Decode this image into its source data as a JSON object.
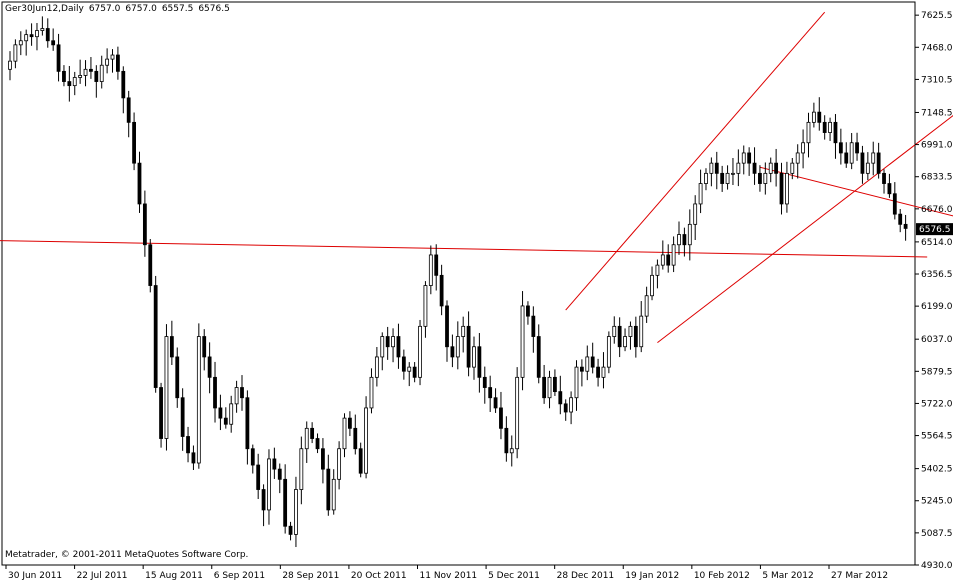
{
  "header": {
    "symbol": "Ger30Jun12,Daily",
    "open": "6757.0",
    "high": "6757.0",
    "low": "6557.5",
    "close": "6576.5"
  },
  "footer": {
    "copyright": "Metatrader, © 2001-2011 MetaQuotes Software Corp."
  },
  "colors": {
    "line": "#dd0000",
    "candle_up": "#000000",
    "candle_down": "#000000",
    "price_box": "#000000"
  },
  "chart_data": {
    "type": "candlestick",
    "title": "",
    "y_ticks": [
      "7625.5",
      "7468.0",
      "7310.5",
      "7148.5",
      "6991.0",
      "6833.5",
      "6676.0",
      "6514.0",
      "6356.5",
      "6199.0",
      "6037.0",
      "5879.5",
      "5722.0",
      "5564.5",
      "5402.5",
      "5245.0",
      "5087.5",
      "4930.0"
    ],
    "x_ticks": [
      "30 Jun 2011",
      "22 Jul 2011",
      "15 Aug 2011",
      "6 Sep 2011",
      "28 Sep 2011",
      "20 Oct 2011",
      "11 Nov 2011",
      "5 Dec 2011",
      "28 Dec 2011",
      "19 Jan 2012",
      "10 Feb 2012",
      "5 Mar 2012",
      "27 Mar 2012"
    ],
    "ylim": [
      4930,
      7690
    ],
    "current_price": "6576.5",
    "grid": false,
    "closes": [
      7400,
      7480,
      7500,
      7530,
      7520,
      7550,
      7560,
      7500,
      7480,
      7350,
      7300,
      7280,
      7320,
      7330,
      7360,
      7350,
      7300,
      7380,
      7410,
      7430,
      7350,
      7220,
      7100,
      6900,
      6700,
      6500,
      6300,
      5800,
      5550,
      6050,
      5950,
      5750,
      5560,
      5480,
      5430,
      6050,
      5950,
      5850,
      5700,
      5650,
      5620,
      5720,
      5800,
      5750,
      5500,
      5420,
      5300,
      5200,
      5450,
      5400,
      5350,
      5120,
      5080,
      5300,
      5500,
      5600,
      5550,
      5500,
      5400,
      5200,
      5350,
      5500,
      5650,
      5600,
      5500,
      5380,
      5700,
      5850,
      5950,
      6050,
      6000,
      6050,
      5950,
      5880,
      5900,
      5850,
      6100,
      6300,
      6450,
      6350,
      6200,
      6000,
      5950,
      6050,
      6100,
      5900,
      6000,
      5850,
      5800,
      5750,
      5700,
      5600,
      5480,
      5500,
      5850,
      6200,
      6150,
      6050,
      5850,
      5750,
      5850,
      5780,
      5720,
      5680,
      5750,
      5900,
      5880,
      5950,
      5900,
      5850,
      5900,
      6050,
      6100,
      6000,
      6050,
      6100,
      6000,
      6150,
      6250,
      6350,
      6400,
      6450,
      6400,
      6500,
      6550,
      6500,
      6600,
      6700,
      6800,
      6850,
      6900,
      6850,
      6800,
      6850,
      6850,
      6900,
      6950,
      6900,
      6850,
      6800,
      6850,
      6900,
      6850,
      6700,
      6850,
      6900,
      6950,
      7000,
      7100,
      7150,
      7100,
      7050,
      7100,
      7000,
      6950,
      6900,
      7000,
      6950,
      6850,
      6900,
      6950,
      6850,
      6800,
      6750,
      6650,
      6600,
      6580
    ]
  }
}
